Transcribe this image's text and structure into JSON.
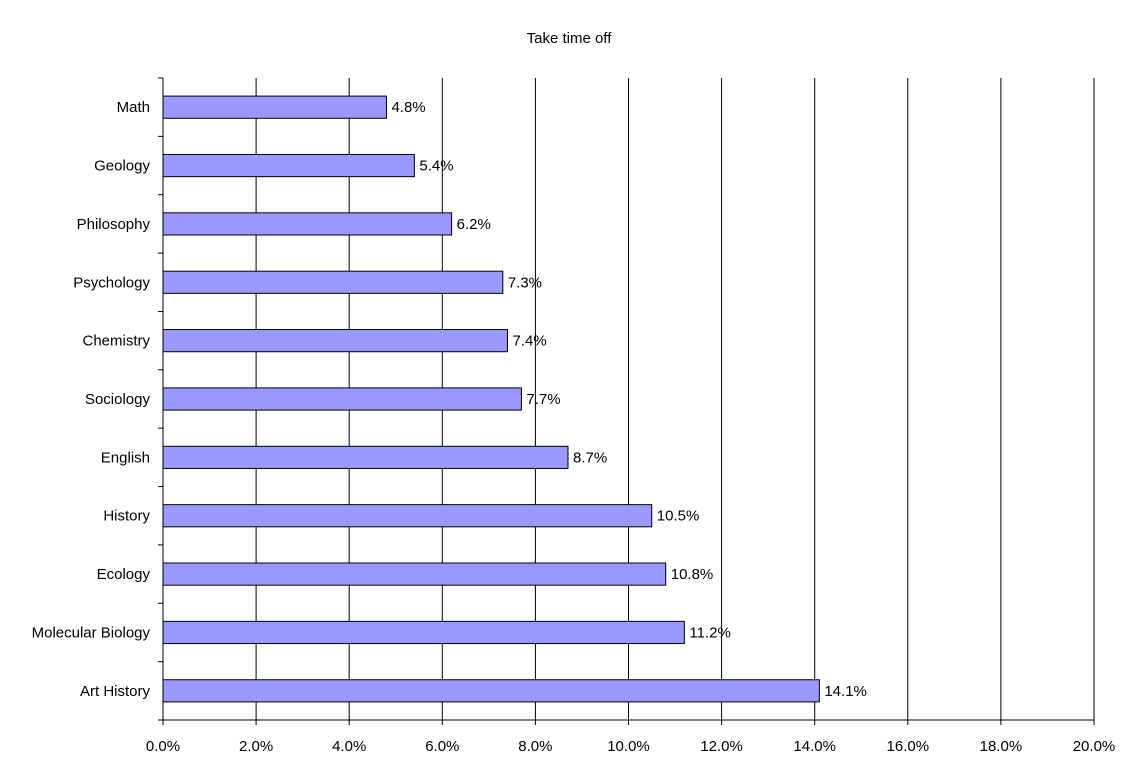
{
  "chart_data": {
    "type": "bar",
    "orientation": "horizontal",
    "title": "Take time off",
    "xlabel": "",
    "ylabel": "",
    "categories": [
      "Math",
      "Geology",
      "Philosophy",
      "Psychology",
      "Chemistry",
      "Sociology",
      "English",
      "History",
      "Ecology",
      "Molecular Biology",
      "Art History"
    ],
    "values": [
      4.8,
      5.4,
      6.2,
      7.3,
      7.4,
      7.7,
      8.7,
      10.5,
      10.8,
      11.2,
      14.1
    ],
    "data_labels": [
      "4.8%",
      "5.4%",
      "6.2%",
      "7.3%",
      "7.4%",
      "7.7%",
      "8.7%",
      "10.5%",
      "10.8%",
      "11.2%",
      "14.1%"
    ],
    "xlim": [
      0,
      20
    ],
    "x_ticks": [
      0,
      2,
      4,
      6,
      8,
      10,
      12,
      14,
      16,
      18,
      20
    ],
    "x_tick_labels": [
      "0.0%",
      "2.0%",
      "4.0%",
      "6.0%",
      "8.0%",
      "10.0%",
      "12.0%",
      "14.0%",
      "16.0%",
      "18.0%",
      "20.0%"
    ],
    "grid": "vertical major gridlines",
    "legend": "none",
    "bar_color": "#9999FF",
    "bar_border_color": "#000000"
  }
}
